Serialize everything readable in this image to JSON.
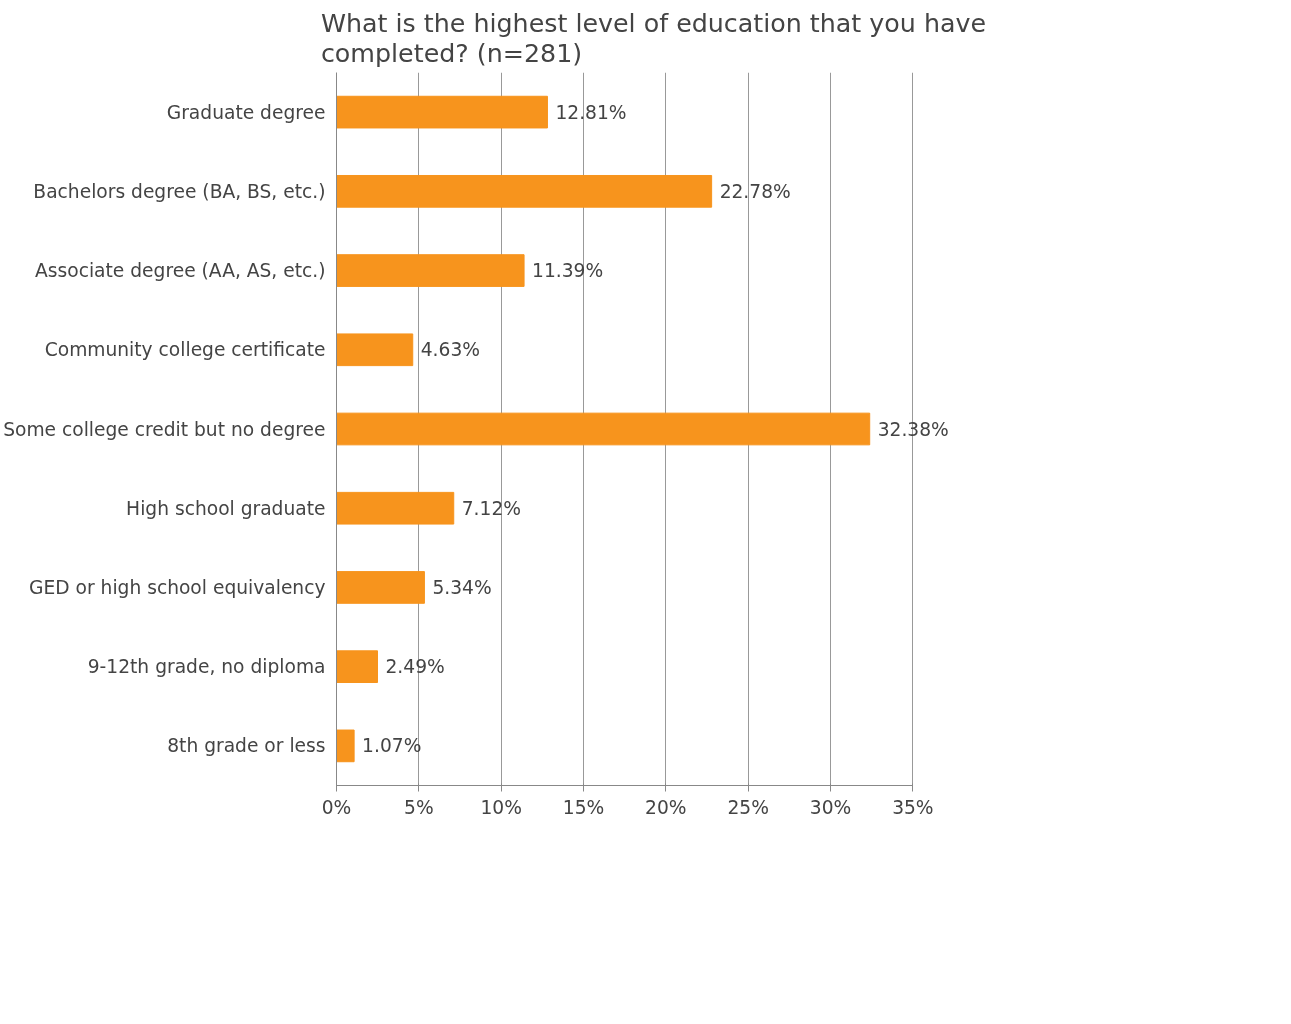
{
  "chart_data": {
    "type": "bar",
    "orientation": "horizontal",
    "title": "What is the highest level of education that you have completed? (n=281)",
    "categories": [
      "Graduate degree",
      "Bachelors degree (BA, BS, etc.)",
      "Associate degree (AA, AS, etc.)",
      "Community college certificate",
      "Some college credit but no degree",
      "High school graduate",
      "GED or high school equivalency",
      "9-12th grade, no diploma",
      "8th grade or less"
    ],
    "values": [
      12.81,
      22.78,
      11.39,
      4.63,
      32.38,
      7.12,
      5.34,
      2.49,
      1.07
    ],
    "value_labels": [
      "12.81%",
      "22.78%",
      "11.39%",
      "4.63%",
      "32.38%",
      "7.12%",
      "5.34%",
      "2.49%",
      "1.07%"
    ],
    "color": "#f7941d",
    "xlim": [
      0,
      35
    ],
    "xticks": [
      {
        "value": 0,
        "label": "0%"
      },
      {
        "value": 5,
        "label": "5%"
      },
      {
        "value": 10,
        "label": "10%"
      },
      {
        "value": 15,
        "label": "15%"
      },
      {
        "value": 20,
        "label": "20%"
      },
      {
        "value": 25,
        "label": "25%"
      },
      {
        "value": 30,
        "label": "30%"
      },
      {
        "value": 35,
        "label": "35%"
      }
    ],
    "grid": "x"
  }
}
